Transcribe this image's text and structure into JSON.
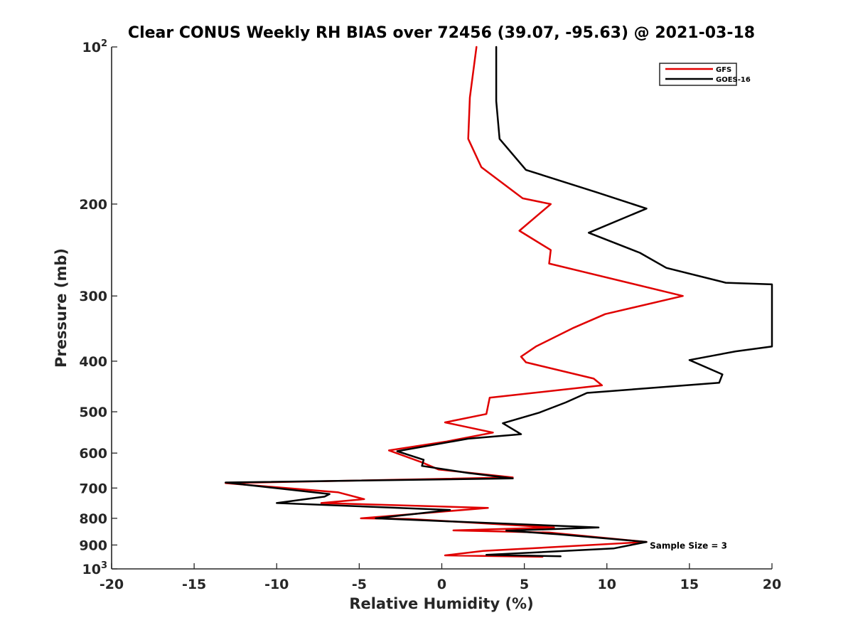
{
  "chart_data": {
    "type": "line",
    "title": "Clear CONUS Weekly RH BIAS over 72456 (39.07, -95.63) @ 2021-03-18",
    "xlabel": "Relative Humidity (%)",
    "ylabel": "Pressure (mb)",
    "xlim": [
      -20,
      20
    ],
    "ylim": [
      100,
      1000
    ],
    "y_scale": "log",
    "y_reversed": true,
    "grid": false,
    "legend_position": "top-right",
    "x_ticks": [
      {
        "value": -20,
        "label": "-20"
      },
      {
        "value": -15,
        "label": "-15"
      },
      {
        "value": -10,
        "label": "-10"
      },
      {
        "value": -5,
        "label": "-5"
      },
      {
        "value": 0,
        "label": "0"
      },
      {
        "value": 5,
        "label": "5"
      },
      {
        "value": 10,
        "label": "10"
      },
      {
        "value": 15,
        "label": "15"
      },
      {
        "value": 20,
        "label": "20"
      }
    ],
    "y_ticks": [
      {
        "value": 100,
        "label": "10",
        "exponent": "2"
      },
      {
        "value": 200,
        "label": "200"
      },
      {
        "value": 300,
        "label": "300"
      },
      {
        "value": 400,
        "label": "400"
      },
      {
        "value": 500,
        "label": "500"
      },
      {
        "value": 600,
        "label": "600"
      },
      {
        "value": 700,
        "label": "700"
      },
      {
        "value": 800,
        "label": "800"
      },
      {
        "value": 900,
        "label": "900"
      },
      {
        "value": 1000,
        "label": "10",
        "exponent": "3"
      }
    ],
    "series": [
      {
        "name": "GFS",
        "color": "#e00000",
        "points": [
          [
            2.1,
            100
          ],
          [
            1.7,
            125
          ],
          [
            1.6,
            150
          ],
          [
            2.4,
            170
          ],
          [
            4.9,
            195
          ],
          [
            6.6,
            200
          ],
          [
            4.7,
            225
          ],
          [
            6.6,
            245
          ],
          [
            6.5,
            260
          ],
          [
            14.6,
            300
          ],
          [
            9.9,
            325
          ],
          [
            8.0,
            345
          ],
          [
            5.7,
            375
          ],
          [
            4.8,
            392
          ],
          [
            5.1,
            402
          ],
          [
            9.2,
            432
          ],
          [
            9.7,
            445
          ],
          [
            2.9,
            470
          ],
          [
            2.7,
            505
          ],
          [
            0.2,
            524
          ],
          [
            3.1,
            548
          ],
          [
            0.3,
            570
          ],
          [
            -3.2,
            593
          ],
          [
            -1.2,
            625
          ],
          [
            -0.2,
            645
          ],
          [
            4.3,
            668
          ],
          [
            -13.1,
            685
          ],
          [
            -6.3,
            713
          ],
          [
            -4.7,
            735
          ],
          [
            -7.3,
            748
          ],
          [
            2.8,
            764
          ],
          [
            -4.9,
            800
          ],
          [
            -2.0,
            802
          ],
          [
            6.8,
            833
          ],
          [
            0.7,
            844
          ],
          [
            6.5,
            852
          ],
          [
            12.4,
            888
          ],
          [
            2.5,
            924
          ],
          [
            0.2,
            942
          ],
          [
            6.1,
            948
          ]
        ]
      },
      {
        "name": "GOES-16",
        "color": "#000000",
        "points": [
          [
            3.3,
            100
          ],
          [
            3.3,
            127
          ],
          [
            3.5,
            150
          ],
          [
            5.1,
            172
          ],
          [
            9.4,
            190
          ],
          [
            12.4,
            204
          ],
          [
            8.9,
            227
          ],
          [
            12.0,
            248
          ],
          [
            13.6,
            265
          ],
          [
            17.2,
            283
          ],
          [
            20.0,
            285
          ],
          [
            20.0,
            375
          ],
          [
            17.8,
            383
          ],
          [
            15.0,
            398
          ],
          [
            17.0,
            424
          ],
          [
            16.8,
            440
          ],
          [
            8.8,
            460
          ],
          [
            7.5,
            480
          ],
          [
            5.9,
            502
          ],
          [
            3.7,
            526
          ],
          [
            4.8,
            552
          ],
          [
            1.6,
            563
          ],
          [
            -2.7,
            595
          ],
          [
            -1.1,
            618
          ],
          [
            -1.2,
            635
          ],
          [
            1.6,
            655
          ],
          [
            4.3,
            671
          ],
          [
            -13.1,
            683
          ],
          [
            -6.8,
            719
          ],
          [
            -7.1,
            727
          ],
          [
            -10.0,
            748
          ],
          [
            0.5,
            771
          ],
          [
            -4.0,
            800
          ],
          [
            9.5,
            833
          ],
          [
            3.9,
            845
          ],
          [
            7.0,
            858
          ],
          [
            12.4,
            888
          ],
          [
            10.4,
            914
          ],
          [
            2.7,
            940
          ],
          [
            7.2,
            946
          ]
        ]
      }
    ],
    "legend": [
      {
        "label": "GFS",
        "color": "#e00000"
      },
      {
        "label": "GOES-16",
        "color": "#000000"
      }
    ],
    "annotation": {
      "text": "Sample Size = 3",
      "x": 12.6,
      "y": 900
    }
  }
}
